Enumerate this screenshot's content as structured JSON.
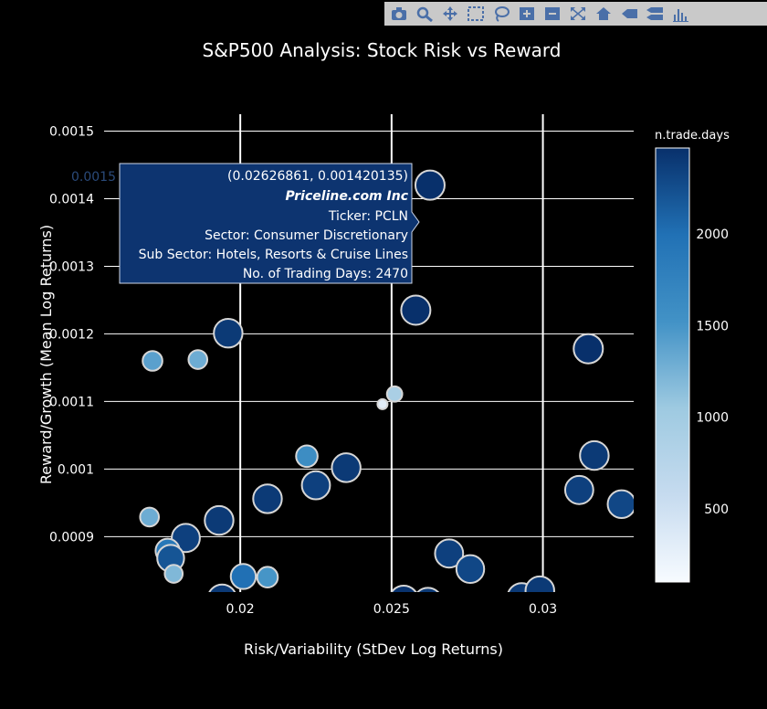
{
  "modebar": {
    "buttons": [
      {
        "name": "camera-icon",
        "icon": "camera"
      },
      {
        "name": "zoom-icon",
        "icon": "magnifier"
      },
      {
        "name": "pan-icon",
        "icon": "move-arrows"
      },
      {
        "name": "box-select-icon",
        "icon": "dashed-box"
      },
      {
        "name": "lasso-select-icon",
        "icon": "lasso"
      },
      {
        "name": "zoom-in-icon",
        "icon": "plus-box"
      },
      {
        "name": "zoom-out-icon",
        "icon": "minus-box"
      },
      {
        "name": "autoscale-icon",
        "icon": "autoscale"
      },
      {
        "name": "reset-axes-icon",
        "icon": "home"
      },
      {
        "name": "spike-lines-icon",
        "icon": "spike"
      },
      {
        "name": "compare-hover-icon",
        "icon": "compare"
      },
      {
        "name": "plotly-logo-icon",
        "icon": "plotly-bars"
      }
    ],
    "color": "#4a6fa8"
  },
  "chart_data": {
    "type": "scatter",
    "title": "S&P500 Analysis: Stock Risk vs Reward",
    "xlabel": "Risk/Variability (StDev Log Returns)",
    "ylabel": "Reward/Growth (Mean Log Returns)",
    "xlim": [
      0.0155,
      0.033
    ],
    "ylim": [
      0.000818,
      0.001525
    ],
    "x_ticks": [
      {
        "value": 0.02,
        "label": "0.02"
      },
      {
        "value": 0.025,
        "label": "0.025"
      },
      {
        "value": 0.03,
        "label": "0.03"
      }
    ],
    "y_ticks": [
      {
        "value": 0.0009,
        "label": "0.0009"
      },
      {
        "value": 0.001,
        "label": "0.001"
      },
      {
        "value": 0.0011,
        "label": "0.0011"
      },
      {
        "value": 0.0012,
        "label": "0.0012"
      },
      {
        "value": 0.0013,
        "label": "0.0013"
      },
      {
        "value": 0.0014,
        "label": "0.0014"
      },
      {
        "value": 0.0015,
        "label": "0.0015"
      }
    ],
    "grid": true,
    "colorbar": {
      "title": "n.trade.days",
      "min": 100,
      "max": 2470,
      "ticks": [
        {
          "value": 500,
          "label": "500"
        },
        {
          "value": 1000,
          "label": "1000"
        },
        {
          "value": 1500,
          "label": "1500"
        },
        {
          "value": 2000,
          "label": "2000"
        }
      ],
      "colorscale": [
        "#f7fbff",
        "#c6dbef",
        "#9ecae1",
        "#4292c6",
        "#2171b5",
        "#08306b"
      ]
    },
    "points": [
      {
        "x": 0.02627,
        "y": 0.00142,
        "days": 2470
      },
      {
        "x": 0.0258,
        "y": 0.001235,
        "days": 2470
      },
      {
        "x": 0.0196,
        "y": 0.001201,
        "days": 2400
      },
      {
        "x": 0.0171,
        "y": 0.00116,
        "days": 1400
      },
      {
        "x": 0.0186,
        "y": 0.001162,
        "days": 1300
      },
      {
        "x": 0.0315,
        "y": 0.001178,
        "days": 2470
      },
      {
        "x": 0.0251,
        "y": 0.001111,
        "days": 900
      },
      {
        "x": 0.0247,
        "y": 0.001096,
        "days": 300
      },
      {
        "x": 0.0222,
        "y": 0.001019,
        "days": 1600
      },
      {
        "x": 0.0235,
        "y": 0.001002,
        "days": 2400
      },
      {
        "x": 0.0225,
        "y": 0.000976,
        "days": 2350
      },
      {
        "x": 0.0209,
        "y": 0.000956,
        "days": 2400
      },
      {
        "x": 0.0317,
        "y": 0.00102,
        "days": 2400
      },
      {
        "x": 0.0312,
        "y": 0.000969,
        "days": 2350
      },
      {
        "x": 0.0326,
        "y": 0.000948,
        "days": 2300
      },
      {
        "x": 0.017,
        "y": 0.000929,
        "days": 1300
      },
      {
        "x": 0.0193,
        "y": 0.000924,
        "days": 2400
      },
      {
        "x": 0.0182,
        "y": 0.000898,
        "days": 2350
      },
      {
        "x": 0.0176,
        "y": 0.000879,
        "days": 1900
      },
      {
        "x": 0.0177,
        "y": 0.000868,
        "days": 2200
      },
      {
        "x": 0.0178,
        "y": 0.000845,
        "days": 1200
      },
      {
        "x": 0.0201,
        "y": 0.000841,
        "days": 2000
      },
      {
        "x": 0.0209,
        "y": 0.00084,
        "days": 1500
      },
      {
        "x": 0.0269,
        "y": 0.000875,
        "days": 2350
      },
      {
        "x": 0.0276,
        "y": 0.000852,
        "days": 2300
      },
      {
        "x": 0.0194,
        "y": 0.000808,
        "days": 2400
      },
      {
        "x": 0.0254,
        "y": 0.000806,
        "days": 2450
      },
      {
        "x": 0.0262,
        "y": 0.000803,
        "days": 2400
      },
      {
        "x": 0.0293,
        "y": 0.00081,
        "days": 2400
      },
      {
        "x": 0.0299,
        "y": 0.00082,
        "days": 2400
      }
    ],
    "tooltip": {
      "coords": "(0.02626861, 0.001420135)",
      "name": "Priceline.com Inc",
      "ticker": "Ticker: PCLN",
      "sector": "Sector: Consumer Discretionary",
      "sub_sector": "Sub Sector: Hotels, Resorts & Cruise Lines",
      "days": "No. of Trading Days: 2470",
      "overlap_text": "0.0015"
    }
  }
}
